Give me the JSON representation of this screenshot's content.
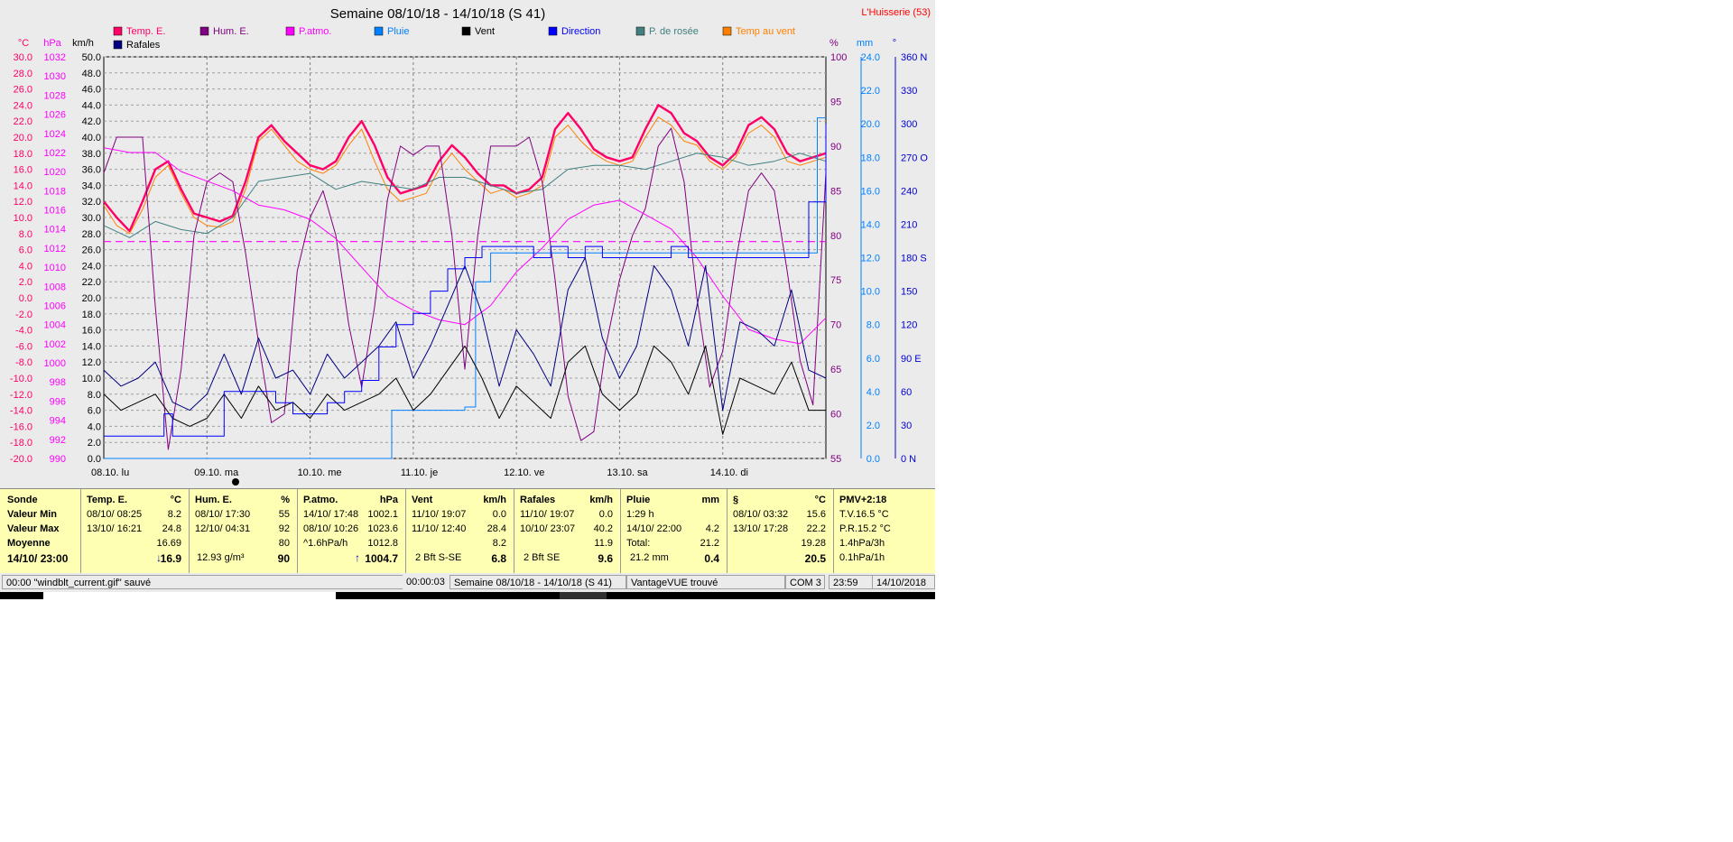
{
  "chart_data": {
    "type": "line",
    "title": "Semaine 08/10/18 - 14/10/18 (S 41)",
    "station": "L'Huisserie (53)",
    "x_unit": "hours",
    "x_range": [
      0,
      168
    ],
    "day_labels": [
      "08.10.  lu",
      "09.10.  ma",
      "10.10.  me",
      "11.10.  je",
      "12.10.  ve",
      "13.10.  sa",
      "14.10.  di"
    ],
    "axes": {
      "temp_c": {
        "unit": "°C",
        "range": [
          -20,
          30
        ],
        "ticks": [
          "30.0",
          "28.0",
          "26.0",
          "24.0",
          "22.0",
          "20.0",
          "18.0",
          "16.0",
          "14.0",
          "12.0",
          "10.0",
          "8.0",
          "6.0",
          "4.0",
          "2.0",
          "0.0",
          "-2.0",
          "-4.0",
          "-6.0",
          "-8.0",
          "-10.0",
          "-12.0",
          "-14.0",
          "-16.0",
          "-18.0",
          "-20.0"
        ]
      },
      "pressure_hpa": {
        "unit": "hPa",
        "range": [
          990,
          1032
        ],
        "ticks": [
          "1032",
          "1030",
          "1028",
          "1026",
          "1024",
          "1022",
          "1020",
          "1018",
          "1016",
          "1014",
          "1012",
          "1010",
          "1008",
          "1006",
          "1004",
          "1002",
          "1000",
          "998",
          "996",
          "994",
          "992",
          "990"
        ]
      },
      "wind_kmh": {
        "unit": "km/h",
        "range": [
          0,
          50
        ],
        "ticks": [
          "50.0",
          "48.0",
          "46.0",
          "44.0",
          "42.0",
          "40.0",
          "38.0",
          "36.0",
          "34.0",
          "32.0",
          "30.0",
          "28.0",
          "26.0",
          "24.0",
          "22.0",
          "20.0",
          "18.0",
          "16.0",
          "14.0",
          "12.0",
          "10.0",
          "8.0",
          "6.0",
          "4.0",
          "2.0",
          "0.0"
        ]
      },
      "humidity_pct": {
        "unit": "%",
        "range": [
          55,
          100
        ],
        "ticks": [
          "100",
          "95",
          "90",
          "85",
          "80",
          "75",
          "70",
          "65",
          "60",
          "55"
        ]
      },
      "rain_mm": {
        "unit": "mm",
        "range": [
          0,
          25
        ],
        "ticks": [
          "24.0",
          "22.0",
          "20.0",
          "18.0",
          "16.0",
          "14.0",
          "12.0",
          "10.0",
          "8.0",
          "6.0",
          "4.0",
          "2.0",
          "0.0"
        ]
      },
      "direction_deg": {
        "unit": "°",
        "range": [
          0,
          360
        ],
        "ticks": [
          "360 N",
          "330",
          "300",
          "270 O",
          "240",
          "210",
          "180 S",
          "150",
          "120",
          "90  E",
          "60",
          "30",
          "0   N"
        ]
      }
    },
    "legend": [
      {
        "name": "Temp. E.",
        "color": "#ff0066"
      },
      {
        "name": "Hum. E.",
        "color": "#800080"
      },
      {
        "name": "P.atmo.",
        "color": "#ff00ff"
      },
      {
        "name": "Pluie",
        "color": "#0080ff"
      },
      {
        "name": "Vent",
        "color": "#000000"
      },
      {
        "name": "Direction",
        "color": "#0000ff"
      },
      {
        "name": "P. de rosée",
        "color": "#408080"
      },
      {
        "name": "Temp au vent",
        "color": "#ff8000"
      },
      {
        "name": "Rafales",
        "color": "#000080"
      }
    ],
    "series": [
      {
        "name": "Temp. E.",
        "axis": "temp_c",
        "x": [
          0,
          3,
          6,
          9,
          12,
          15,
          18,
          21,
          24,
          27,
          30,
          33,
          36,
          39,
          42,
          45,
          48,
          51,
          54,
          57,
          60,
          63,
          66,
          69,
          72,
          75,
          78,
          81,
          84,
          87,
          90,
          93,
          96,
          99,
          102,
          105,
          108,
          111,
          114,
          117,
          120,
          123,
          126,
          129,
          132,
          135,
          138,
          141,
          144,
          147,
          150,
          153,
          156,
          159,
          162,
          165,
          168
        ],
        "y": [
          12.0,
          10.0,
          8.3,
          12.0,
          16.0,
          17.0,
          13.5,
          10.5,
          10.0,
          9.5,
          10.2,
          14.5,
          20.0,
          21.5,
          19.5,
          18.0,
          16.5,
          16.0,
          17.0,
          20.0,
          22.0,
          19.0,
          15.0,
          13.0,
          13.5,
          14.0,
          17.0,
          19.0,
          17.5,
          15.5,
          14.0,
          14.0,
          13.0,
          13.5,
          15.0,
          21.0,
          23.0,
          21.0,
          18.5,
          17.5,
          17.0,
          17.5,
          21.0,
          24.0,
          23.0,
          20.5,
          19.5,
          17.5,
          16.5,
          18.0,
          21.5,
          22.5,
          21.0,
          18.0,
          17.0,
          17.5,
          18.0
        ]
      },
      {
        "name": "Temp au vent",
        "axis": "temp_c",
        "x": [
          0,
          3,
          6,
          9,
          12,
          15,
          18,
          21,
          24,
          27,
          30,
          33,
          36,
          39,
          42,
          45,
          48,
          51,
          54,
          57,
          60,
          63,
          66,
          69,
          72,
          75,
          78,
          81,
          84,
          87,
          90,
          93,
          96,
          99,
          102,
          105,
          108,
          111,
          114,
          117,
          120,
          123,
          126,
          129,
          132,
          135,
          138,
          141,
          144,
          147,
          150,
          153,
          156,
          159,
          162,
          165,
          168
        ],
        "y": [
          11.5,
          9.0,
          8.0,
          11.0,
          15.0,
          16.5,
          13.0,
          10.0,
          9.0,
          8.8,
          9.5,
          13.5,
          19.5,
          21.0,
          19.0,
          17.0,
          16.0,
          15.5,
          16.5,
          19.0,
          21.0,
          17.0,
          13.5,
          12.0,
          12.5,
          13.0,
          16.0,
          18.0,
          16.0,
          14.5,
          13.0,
          13.5,
          12.5,
          13.0,
          14.0,
          20.0,
          21.5,
          19.5,
          18.0,
          17.0,
          16.5,
          17.0,
          20.0,
          22.5,
          21.5,
          19.5,
          19.0,
          17.0,
          16.0,
          17.5,
          20.5,
          21.5,
          20.0,
          17.0,
          16.5,
          17.0,
          17.5
        ]
      },
      {
        "name": "P. de rosée",
        "axis": "temp_c",
        "x": [
          0,
          6,
          12,
          18,
          24,
          30,
          36,
          42,
          48,
          54,
          60,
          66,
          72,
          78,
          84,
          90,
          96,
          102,
          108,
          114,
          120,
          126,
          132,
          138,
          144,
          150,
          156,
          162,
          168
        ],
        "y": [
          9.0,
          7.5,
          9.5,
          8.5,
          8.0,
          10.0,
          14.5,
          15.0,
          15.5,
          13.5,
          14.5,
          14.0,
          13.5,
          15.0,
          15.0,
          14.0,
          13.0,
          13.5,
          16.0,
          16.5,
          16.5,
          16.0,
          17.0,
          18.0,
          17.5,
          16.5,
          17.0,
          18.0,
          17.0
        ]
      },
      {
        "name": "Hum. E.",
        "axis": "humidity_pct",
        "x": [
          0,
          3,
          6,
          9,
          12,
          15,
          18,
          21,
          24,
          27,
          30,
          33,
          36,
          39,
          42,
          45,
          48,
          51,
          54,
          57,
          60,
          63,
          66,
          69,
          72,
          75,
          78,
          81,
          84,
          87,
          90,
          93,
          96,
          99,
          102,
          105,
          108,
          111,
          114,
          117,
          120,
          123,
          126,
          129,
          132,
          135,
          138,
          141,
          144,
          147,
          150,
          153,
          156,
          159,
          162,
          165,
          168
        ],
        "y": [
          87,
          91,
          91,
          91,
          72,
          56,
          65,
          80,
          86,
          87,
          86,
          78,
          68,
          59,
          60,
          76,
          82,
          85,
          80,
          70,
          63,
          72,
          84,
          90,
          89,
          90,
          90,
          80,
          65,
          80,
          90,
          90,
          90,
          91,
          86,
          75,
          62,
          57,
          58,
          68,
          75,
          80,
          83,
          90,
          92,
          86,
          73,
          63,
          67,
          77,
          85,
          87,
          85,
          76,
          66,
          61,
          87
        ]
      },
      {
        "name": "P.atmo.",
        "axis": "pressure_hpa",
        "x": [
          0,
          6,
          12,
          18,
          24,
          30,
          36,
          42,
          48,
          54,
          60,
          66,
          72,
          78,
          84,
          90,
          96,
          102,
          108,
          114,
          120,
          126,
          132,
          138,
          144,
          150,
          156,
          162,
          168
        ],
        "y": [
          1022.5,
          1022.0,
          1022.0,
          1020.0,
          1019.0,
          1018.0,
          1016.5,
          1016.0,
          1015.0,
          1013.0,
          1010.0,
          1007.0,
          1005.5,
          1004.5,
          1004.0,
          1006.0,
          1009.5,
          1012.0,
          1015.0,
          1016.5,
          1017.0,
          1015.5,
          1014.0,
          1011.0,
          1007.0,
          1003.5,
          1002.5,
          1002.0,
          1004.7
        ]
      },
      {
        "name": "Pluie",
        "axis": "rain_mm",
        "x": [
          0,
          66,
          67,
          76,
          84,
          86,
          86.5,
          90,
          91,
          120,
          144,
          160,
          164,
          166,
          167,
          168
        ],
        "y": [
          0,
          0,
          3.0,
          3.0,
          3.2,
          3.2,
          11.0,
          12.8,
          12.8,
          12.8,
          12.8,
          12.8,
          12.8,
          21.2,
          21.2,
          21.2
        ]
      },
      {
        "name": "Vent",
        "axis": "wind_kmh",
        "x": [
          0,
          4,
          8,
          12,
          16,
          20,
          24,
          28,
          32,
          36,
          40,
          44,
          48,
          52,
          56,
          60,
          64,
          68,
          72,
          76,
          80,
          84,
          88,
          92,
          96,
          100,
          104,
          108,
          112,
          116,
          120,
          124,
          128,
          132,
          136,
          140,
          144,
          148,
          152,
          156,
          160,
          164,
          168
        ],
        "y": [
          8,
          6,
          7,
          8,
          5,
          4,
          5,
          8,
          5,
          9,
          6,
          7,
          5,
          8,
          6,
          7,
          8,
          10,
          6,
          8,
          11,
          14,
          10,
          5,
          9,
          7,
          5,
          12,
          14,
          8,
          6,
          8,
          14,
          12,
          8,
          14,
          3,
          10,
          9,
          8,
          12,
          6,
          6
        ]
      },
      {
        "name": "Rafales",
        "axis": "wind_kmh",
        "x": [
          0,
          4,
          8,
          12,
          16,
          20,
          24,
          28,
          32,
          36,
          40,
          44,
          48,
          52,
          56,
          60,
          64,
          68,
          72,
          76,
          80,
          84,
          88,
          92,
          96,
          100,
          104,
          108,
          112,
          116,
          120,
          124,
          128,
          132,
          136,
          140,
          144,
          148,
          152,
          156,
          160,
          164,
          168
        ],
        "y": [
          11,
          9,
          10,
          12,
          7,
          6,
          8,
          13,
          8,
          15,
          10,
          11,
          8,
          13,
          10,
          12,
          14,
          17,
          10,
          14,
          19,
          24,
          18,
          9,
          16,
          13,
          9,
          21,
          25,
          15,
          10,
          14,
          24,
          21,
          14,
          24,
          6,
          17,
          16,
          14,
          21,
          11,
          10
        ]
      },
      {
        "name": "Direction",
        "axis": "direction_deg",
        "x": [
          0,
          8,
          12,
          14,
          16,
          24,
          28,
          32,
          36,
          40,
          44,
          48,
          52,
          56,
          60,
          64,
          68,
          72,
          76,
          80,
          84,
          88,
          92,
          96,
          100,
          104,
          108,
          112,
          116,
          120,
          124,
          128,
          132,
          136,
          140,
          144,
          148,
          152,
          156,
          160,
          164,
          168
        ],
        "y": [
          20,
          20,
          20,
          40,
          20,
          20,
          60,
          60,
          60,
          50,
          40,
          40,
          50,
          60,
          70,
          100,
          120,
          130,
          150,
          170,
          180,
          190,
          190,
          190,
          180,
          190,
          180,
          190,
          180,
          180,
          180,
          180,
          190,
          180,
          180,
          180,
          180,
          180,
          180,
          180,
          230,
          300
        ]
      }
    ],
    "reference_line": {
      "axis": "temp_c",
      "y": 7.0,
      "color": "#ff00ff",
      "style": "dashed"
    },
    "grid": true
  },
  "labels": {
    "title": "Semaine 08/10/18 - 14/10/18 (S 41)",
    "station": "L'Huisserie (53)",
    "unit_temp": "°C",
    "unit_hpa": "hPa",
    "unit_kmh": "km/h",
    "unit_pct": "%",
    "unit_mm": "mm",
    "unit_deg": "°"
  },
  "stats": {
    "sonde": {
      "header": "Sonde",
      "rows": [
        "Valeur Min",
        "Valeur Max",
        "Moyenne",
        "14/10/  23:00"
      ]
    },
    "temp": {
      "header": "Temp. E.",
      "unit": "°C",
      "min_time": "08/10/  08:25",
      "min_val": "8.2",
      "max_time": "13/10/  16:21",
      "max_val": "24.8",
      "avg": "16.69",
      "current": "16.9",
      "trend": "↓"
    },
    "hum": {
      "header": "Hum. E.",
      "unit": "%",
      "min_time": "08/10/  17:30",
      "min_val": "55",
      "max_time": "12/10/  04:31",
      "max_val": "92",
      "avg": "80",
      "extra": "12.93 g/m³",
      "current": "90"
    },
    "patmo": {
      "header": "P.atmo.",
      "unit": "hPa",
      "min_time": "14/10/  17:48",
      "min_val": "1002.1",
      "max_time": "08/10/  10:26",
      "max_val": "1023.6",
      "extra_label": "^1.6hPa/h",
      "avg": "1012.8",
      "current": "1004.7",
      "trend": "↑"
    },
    "vent": {
      "header": "Vent",
      "unit": "km/h",
      "min_time": "11/10/  19:07",
      "min_val": "0.0",
      "max_time": "11/10/  12:40",
      "max_val": "28.4",
      "avg": "8.2",
      "extra": "2 Bft S-SE",
      "current": "6.8"
    },
    "rafales": {
      "header": "Rafales",
      "unit": "km/h",
      "min_time": "11/10/  19:07",
      "min_val": "0.0",
      "max_time": "10/10/  23:07",
      "max_val": "40.2",
      "avg": "11.9",
      "extra": "2 Bft SE",
      "current": "9.6"
    },
    "pluie": {
      "header": "Pluie",
      "unit": "mm",
      "r1_label": "1:29 h",
      "r2_time": "14/10/  22:00",
      "r2_val": "4.2",
      "r3_label": "Total:",
      "r3_val": "21.2",
      "extra": "21.2 mm",
      "current": "0.4"
    },
    "rosee": {
      "header": "§",
      "unit": "°C",
      "min_time": "08/10/  03:32",
      "min_val": "15.6",
      "max_time": "13/10/  17:28",
      "max_val": "22.2",
      "avg": "19.28",
      "current": "20.5"
    },
    "pmv": {
      "header": "PMV+2:18",
      "r1": "T.V.16.5 °C",
      "r2": "P.R.15.2 °C",
      "r3": "1.4hPa/3h",
      "r4": "0.1hPa/1h"
    }
  },
  "statusbar": {
    "message": "00:00  \"windblt_current.gif\"  sauvé",
    "elapsed": "00:00:03",
    "period": "Semaine 08/10/18 - 14/10/18 (S 41)",
    "device": "VantageVUE trouvé",
    "port": "COM 3",
    "time": "23:59",
    "date": "14/10/2018"
  }
}
